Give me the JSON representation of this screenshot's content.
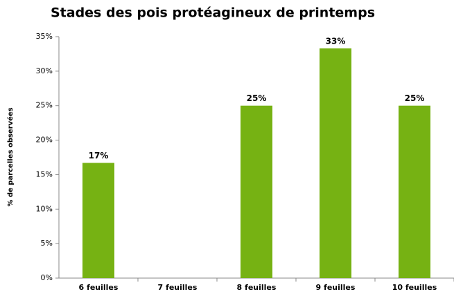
{
  "chart_data": {
    "type": "bar",
    "title": "Stades des pois protéagineux de printemps",
    "y_label": "% de parcelles observées",
    "categories": [
      "6 feuilles",
      "7 feuilles",
      "8 feuilles",
      "9 feuilles",
      "10 feuilles"
    ],
    "values": [
      16.7,
      0,
      25,
      33.3,
      25
    ],
    "value_labels": [
      "17%",
      null,
      "25%",
      "33%",
      "25%"
    ],
    "color": "#76b213",
    "ylim": [
      0,
      35
    ],
    "yticks": [
      {
        "value": 0,
        "label": "0%"
      },
      {
        "value": 5,
        "label": "5%"
      },
      {
        "value": 10,
        "label": "10%"
      },
      {
        "value": 15,
        "label": "15%"
      },
      {
        "value": 20,
        "label": "20%"
      },
      {
        "value": 25,
        "label": "25%"
      },
      {
        "value": 30,
        "label": "30%"
      },
      {
        "value": 35,
        "label": "35%"
      }
    ],
    "grid": false
  }
}
